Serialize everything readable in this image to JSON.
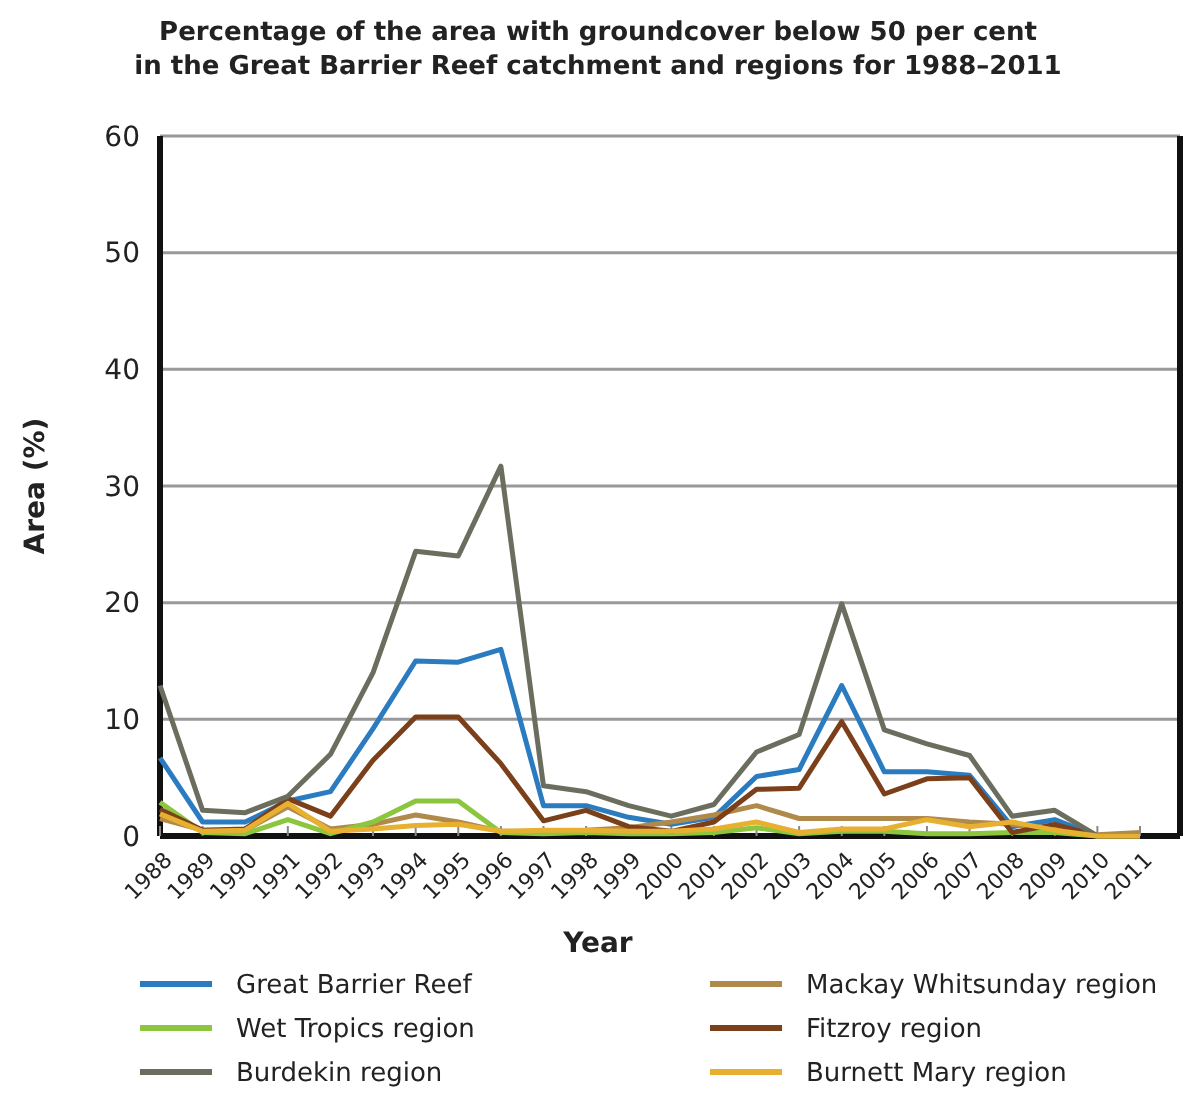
{
  "chart_data": {
    "type": "line",
    "title": "Percentage of the area with groundcover below 50 per cent\nin the Great Barrier Reef catchment and regions for 1988–2011",
    "xlabel": "Year",
    "ylabel": "Area (%)",
    "categories": [
      "1988",
      "1989",
      "1990",
      "1991",
      "1992",
      "1993",
      "1994",
      "1995",
      "1996",
      "1997",
      "1998",
      "1999",
      "2000",
      "2001",
      "2002",
      "2003",
      "2004",
      "2005",
      "2006",
      "2007",
      "2008",
      "2009",
      "2010",
      "2011"
    ],
    "ylim": [
      0,
      60
    ],
    "yticks": [
      0,
      10,
      20,
      30,
      40,
      50,
      60
    ],
    "grid": "y",
    "legend": "bottom",
    "marker": "none",
    "line_style": "solid",
    "series": [
      {
        "name": "Great Barrier Reef",
        "color": "#2b7bc0",
        "values": [
          6.7,
          1.2,
          1.2,
          3.0,
          3.8,
          9.2,
          15,
          14.9,
          16,
          2.6,
          2.6,
          1.6,
          1.0,
          1.6,
          5.1,
          5.7,
          12.9,
          5.5,
          5.5,
          5.2,
          0.8,
          1.4,
          0,
          0
        ]
      },
      {
        "name": "Mackay Whitsunday region",
        "color": "#b08a4a",
        "values": [
          1.5,
          0.5,
          0.5,
          2.5,
          0.6,
          1.0,
          1.8,
          1.2,
          0.4,
          0.4,
          0.5,
          0.7,
          1.2,
          1.8,
          2.6,
          1.5,
          1.5,
          1.5,
          1.5,
          1.2,
          1.0,
          0.6,
          0.1,
          0.3
        ]
      },
      {
        "name": "Wet Tropics region",
        "color": "#8cc63f",
        "values": [
          2.9,
          0.3,
          0.2,
          1.4,
          0.2,
          1.2,
          3.0,
          3.0,
          0.3,
          0.2,
          0.3,
          0.2,
          0.2,
          0.3,
          0.7,
          0.2,
          0.4,
          0.4,
          0.2,
          0.2,
          0.3,
          0.3,
          0,
          0
        ]
      },
      {
        "name": "Fitzroy region",
        "color": "#7b3f1a",
        "values": [
          2.3,
          0.5,
          0.6,
          3.2,
          1.7,
          6.5,
          10.2,
          10.2,
          6.2,
          1.3,
          2.2,
          0.8,
          0.4,
          1.2,
          4.0,
          4.1,
          9.8,
          3.6,
          4.9,
          5.0,
          0.3,
          1.0,
          0,
          0
        ]
      },
      {
        "name": "Burdekin region",
        "color": "#6b6e5f",
        "values": [
          12.9,
          2.2,
          2.0,
          3.4,
          7.0,
          14,
          24.4,
          24,
          31.7,
          4.3,
          3.8,
          2.6,
          1.7,
          2.7,
          7.2,
          8.7,
          19.9,
          9.1,
          7.9,
          6.9,
          1.7,
          2.2,
          0,
          0
        ]
      },
      {
        "name": "Burnett Mary region",
        "color": "#e8b030",
        "values": [
          1.9,
          0.4,
          0.5,
          2.8,
          0.4,
          0.6,
          0.9,
          1.0,
          0.4,
          0.5,
          0.5,
          0.4,
          0.4,
          0.6,
          1.2,
          0.3,
          0.6,
          0.6,
          1.4,
          0.8,
          1.2,
          0.5,
          0,
          0
        ]
      }
    ]
  }
}
